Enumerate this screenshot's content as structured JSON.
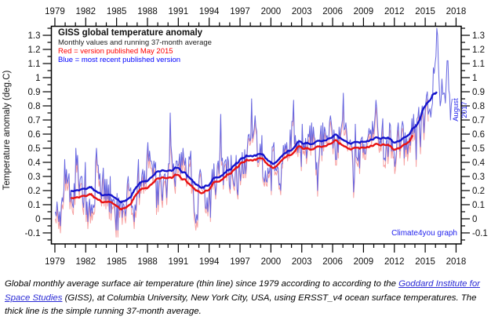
{
  "chart_data": {
    "type": "line",
    "title": "GISS global temperature anomaly",
    "subtitle": "Monthly values and running 37-month average",
    "legend_red": "Red = version published May 2015",
    "legend_blue": "Blue = most recent published version",
    "ylabel": "Temperature anomaly (deg.C)",
    "right_label": "August 2017",
    "watermark": "Climate4you graph",
    "xlim": [
      1978.66,
      2018.5
    ],
    "ylim": [
      -0.178,
      1.364
    ],
    "x_tick_values": [
      1979,
      1982,
      1985,
      1988,
      1991,
      1994,
      1997,
      2000,
      2003,
      2006,
      2009,
      2012,
      2015,
      2018
    ],
    "x_tick_labels": [
      "1979",
      "1982",
      "1985",
      "1988",
      "1991",
      "1994",
      "1997",
      "2000",
      "2003",
      "2006",
      "2009",
      "2012",
      "2015",
      "2018"
    ],
    "x_minor_step": 1,
    "y_tick_values": [
      -0.1,
      0,
      0.1,
      0.2,
      0.3,
      0.4,
      0.5,
      0.6,
      0.7,
      0.8,
      0.9,
      1,
      1.1,
      1.2,
      1.3
    ],
    "y_tick_labels": [
      "-0.1",
      "0",
      "0.1",
      "0.2",
      "0.3",
      "0.4",
      "0.5",
      "0.6",
      "0.7",
      "0.8",
      "0.9",
      "1",
      "1.1",
      "1.2",
      "1.3"
    ],
    "y_minor_step": 0.05,
    "grid": false,
    "running_mean_window": 37,
    "colors": {
      "legend_red_text": "#ff0000",
      "legend_blue_text": "#0000ff",
      "annotation_blue": "#2222ee",
      "link_blue": "#2b2bd5",
      "axis": "#000000"
    },
    "series": [
      {
        "name": "version published May 2015 (monthly, thin) with 37-month running mean (thick)",
        "color_thin": "#f7a0a0",
        "color_thick": "#e81212",
        "start_year": 1979,
        "start_month": 1,
        "values": [
          0.0,
          -0.03,
          0.07,
          0.0,
          -0.07,
          0.0,
          -0.1,
          0.05,
          0.1,
          0.07,
          0.15,
          0.37,
          0.2,
          0.3,
          0.2,
          0.23,
          0.27,
          0.07,
          0.15,
          0.1,
          0.05,
          0.03,
          0.2,
          0.1,
          0.45,
          0.33,
          0.4,
          0.23,
          0.15,
          0.23,
          0.25,
          0.25,
          0.07,
          0.03,
          0.17,
          0.35,
          -0.02,
          0.07,
          -0.07,
          0.03,
          0.09,
          -0.03,
          0.05,
          -0.01,
          0.05,
          0.03,
          0.05,
          0.35,
          0.45,
          0.33,
          0.33,
          0.23,
          0.27,
          0.13,
          0.09,
          0.23,
          0.31,
          0.09,
          0.23,
          0.07,
          0.23,
          0.09,
          0.19,
          0.0,
          0.25,
          -0.01,
          0.09,
          0.07,
          0.09,
          0.08,
          -0.03,
          -0.13,
          0.13,
          -0.13,
          0.1,
          0.01,
          0.07,
          0.08,
          -0.04,
          0.06,
          0.05,
          0.01,
          -0.03,
          0.06,
          0.2,
          0.25,
          0.15,
          0.15,
          0.17,
          0.03,
          0.04,
          0.01,
          -0.07,
          0.05,
          0.01,
          0.09,
          0.25,
          0.37,
          0.1,
          0.21,
          0.18,
          0.26,
          0.3,
          0.18,
          0.29,
          0.2,
          0.21,
          0.4,
          0.49,
          0.36,
          0.43,
          0.36,
          0.36,
          0.33,
          0.25,
          0.36,
          0.31,
          0.35,
          0.03,
          0.22,
          0.05,
          0.21,
          0.28,
          0.26,
          0.13,
          0.08,
          0.22,
          0.26,
          0.27,
          0.21,
          0.1,
          0.25,
          0.34,
          0.34,
          0.7,
          0.47,
          0.4,
          0.29,
          0.34,
          0.23,
          0.18,
          0.36,
          0.36,
          0.32,
          0.34,
          0.41,
          0.27,
          0.42,
          0.33,
          0.45,
          0.37,
          0.33,
          0.38,
          0.23,
          0.25,
          0.25,
          0.39,
          0.37,
          0.43,
          0.18,
          0.23,
          0.16,
          0.0,
          -0.03,
          -0.08,
          -0.02,
          -0.06,
          0.16,
          0.28,
          0.32,
          0.29,
          0.2,
          0.2,
          0.18,
          0.2,
          0.05,
          0.04,
          0.12,
          0.02,
          0.11,
          0.21,
          -0.02,
          0.21,
          0.32,
          0.21,
          0.36,
          0.22,
          0.14,
          0.22,
          0.35,
          0.38,
          0.29,
          0.44,
          0.71,
          0.38,
          0.4,
          0.21,
          0.36,
          0.38,
          0.39,
          0.27,
          0.41,
          0.38,
          0.21,
          0.18,
          0.42,
          0.3,
          0.27,
          0.22,
          0.2,
          0.3,
          0.42,
          0.18,
          0.14,
          0.34,
          0.34,
          0.24,
          0.31,
          0.44,
          0.29,
          0.29,
          0.46,
          0.29,
          0.35,
          0.47,
          0.56,
          0.57,
          0.52,
          0.54,
          0.82,
          0.54,
          0.57,
          0.61,
          0.7,
          0.62,
          0.59,
          0.37,
          0.37,
          0.4,
          0.5,
          0.41,
          0.56,
          0.27,
          0.25,
          0.23,
          0.31,
          0.24,
          0.23,
          0.33,
          0.29,
          0.31,
          0.37,
          0.17,
          0.48,
          0.48,
          0.51,
          0.31,
          0.33,
          0.31,
          0.34,
          0.33,
          0.21,
          0.22,
          0.17,
          0.36,
          0.36,
          0.49,
          0.43,
          0.5,
          0.46,
          0.51,
          0.41,
          0.46,
          0.43,
          0.6,
          0.47,
          0.66,
          0.66,
          0.81,
          0.5,
          0.56,
          0.46,
          0.52,
          0.44,
          0.53,
          0.47,
          0.47,
          0.34,
          0.63,
          0.46,
          0.48,
          0.45,
          0.53,
          0.39,
          0.45,
          0.56,
          0.54,
          0.62,
          0.45,
          0.64,
          0.49,
          0.61,
          0.54,
          0.52,
          0.31,
          0.36,
          0.16,
          0.35,
          0.41,
          0.55,
          0.62,
          0.41,
          0.64,
          0.48,
          0.61,
          0.58,
          0.53,
          0.55,
          0.52,
          0.53,
          0.65,
          0.69,
          0.64,
          0.58,
          0.46,
          0.59,
          0.52,
          0.38,
          0.38,
          0.55,
          0.43,
          0.61,
          0.53,
          0.59,
          0.62,
          0.66,
          0.85,
          0.59,
          0.6,
          0.64,
          0.57,
          0.48,
          0.5,
          0.5,
          0.52,
          0.49,
          0.47,
          0.38,
          0.15,
          0.26,
          0.63,
          0.4,
          0.39,
          0.37,
          0.47,
          0.32,
          0.51,
          0.53,
          0.54,
          0.43,
          0.49,
          0.42,
          0.42,
          0.5,
          0.52,
          0.55,
          0.6,
          0.56,
          0.59,
          0.52,
          0.65,
          0.56,
          0.6,
          0.68,
          0.79,
          0.73,
          0.61,
          0.52,
          0.47,
          0.51,
          0.48,
          0.58,
          0.66,
          0.37,
          0.38,
          0.36,
          0.49,
          0.52,
          0.39,
          0.46,
          0.63,
          0.61,
          0.43,
          0.51,
          0.43,
          0.44,
          0.32,
          0.36,
          0.44,
          0.57,
          0.63,
          0.52,
          0.43,
          0.49,
          0.59,
          0.64,
          0.61,
          0.38,
          0.56,
          0.44,
          0.52,
          0.41,
          0.48,
          0.53,
          0.47,
          0.55,
          0.66,
          0.55,
          0.69,
          0.56,
          0.62,
          0.37,
          0.66,
          0.67,
          0.74,
          0.57,
          0.46,
          0.69,
          0.75,
          0.7,
          0.56,
          0.68,
          0.76,
          0.82,
          0.85,
          0.69
        ]
      },
      {
        "name": "most recent published version (monthly, thin) with 37-month running mean (thick)",
        "color_thin": "#6565e0",
        "color_thick": "#1414cc",
        "start_year": 1979,
        "start_month": 1,
        "values": [
          0.05,
          0.02,
          0.12,
          0.05,
          -0.02,
          0.05,
          -0.05,
          0.1,
          0.15,
          0.12,
          0.2,
          0.42,
          0.25,
          0.35,
          0.25,
          0.28,
          0.32,
          0.12,
          0.2,
          0.15,
          0.1,
          0.08,
          0.25,
          0.15,
          0.5,
          0.38,
          0.45,
          0.28,
          0.2,
          0.28,
          0.3,
          0.3,
          0.12,
          0.08,
          0.22,
          0.4,
          0.03,
          0.12,
          -0.02,
          0.08,
          0.14,
          0.02,
          0.1,
          0.04,
          0.1,
          0.08,
          0.1,
          0.4,
          0.5,
          0.38,
          0.38,
          0.28,
          0.32,
          0.18,
          0.14,
          0.28,
          0.36,
          0.14,
          0.28,
          0.12,
          0.28,
          0.14,
          0.24,
          0.05,
          0.3,
          0.04,
          0.14,
          0.12,
          0.14,
          0.13,
          0.02,
          -0.08,
          0.18,
          -0.08,
          0.15,
          0.06,
          0.12,
          0.13,
          0.01,
          0.11,
          0.1,
          0.06,
          0.02,
          0.11,
          0.25,
          0.3,
          0.2,
          0.2,
          0.22,
          0.08,
          0.09,
          0.06,
          -0.02,
          0.1,
          0.06,
          0.14,
          0.3,
          0.42,
          0.15,
          0.26,
          0.23,
          0.31,
          0.35,
          0.23,
          0.34,
          0.25,
          0.26,
          0.45,
          0.54,
          0.41,
          0.48,
          0.41,
          0.41,
          0.38,
          0.3,
          0.41,
          0.36,
          0.4,
          0.08,
          0.27,
          0.1,
          0.26,
          0.33,
          0.31,
          0.18,
          0.13,
          0.27,
          0.31,
          0.32,
          0.26,
          0.15,
          0.3,
          0.39,
          0.39,
          0.75,
          0.52,
          0.45,
          0.34,
          0.39,
          0.28,
          0.23,
          0.41,
          0.41,
          0.37,
          0.39,
          0.46,
          0.32,
          0.47,
          0.38,
          0.5,
          0.42,
          0.38,
          0.43,
          0.28,
          0.3,
          0.3,
          0.44,
          0.42,
          0.48,
          0.23,
          0.28,
          0.21,
          0.05,
          0.02,
          -0.03,
          0.03,
          -0.01,
          0.21,
          0.31,
          0.35,
          0.32,
          0.23,
          0.23,
          0.21,
          0.23,
          0.08,
          0.07,
          0.15,
          0.05,
          0.14,
          0.24,
          0.01,
          0.24,
          0.35,
          0.24,
          0.39,
          0.25,
          0.17,
          0.25,
          0.38,
          0.41,
          0.32,
          0.47,
          0.74,
          0.41,
          0.43,
          0.24,
          0.39,
          0.41,
          0.42,
          0.3,
          0.44,
          0.41,
          0.24,
          0.21,
          0.45,
          0.33,
          0.3,
          0.25,
          0.23,
          0.33,
          0.45,
          0.21,
          0.17,
          0.37,
          0.37,
          0.27,
          0.34,
          0.47,
          0.32,
          0.32,
          0.49,
          0.32,
          0.38,
          0.5,
          0.59,
          0.6,
          0.55,
          0.57,
          0.85,
          0.57,
          0.6,
          0.64,
          0.73,
          0.65,
          0.62,
          0.4,
          0.4,
          0.43,
          0.53,
          0.44,
          0.59,
          0.3,
          0.28,
          0.26,
          0.34,
          0.27,
          0.26,
          0.36,
          0.32,
          0.34,
          0.4,
          0.2,
          0.51,
          0.51,
          0.54,
          0.34,
          0.36,
          0.34,
          0.37,
          0.36,
          0.24,
          0.25,
          0.2,
          0.39,
          0.39,
          0.52,
          0.46,
          0.53,
          0.49,
          0.54,
          0.44,
          0.49,
          0.46,
          0.63,
          0.5,
          0.69,
          0.69,
          0.84,
          0.53,
          0.59,
          0.49,
          0.55,
          0.47,
          0.56,
          0.5,
          0.5,
          0.37,
          0.67,
          0.5,
          0.52,
          0.49,
          0.57,
          0.43,
          0.49,
          0.6,
          0.58,
          0.66,
          0.49,
          0.68,
          0.53,
          0.65,
          0.58,
          0.56,
          0.35,
          0.4,
          0.2,
          0.39,
          0.45,
          0.59,
          0.66,
          0.45,
          0.68,
          0.52,
          0.65,
          0.62,
          0.57,
          0.59,
          0.56,
          0.57,
          0.69,
          0.73,
          0.68,
          0.62,
          0.5,
          0.63,
          0.56,
          0.42,
          0.42,
          0.59,
          0.47,
          0.65,
          0.57,
          0.63,
          0.66,
          0.7,
          0.89,
          0.63,
          0.64,
          0.68,
          0.61,
          0.52,
          0.54,
          0.54,
          0.56,
          0.53,
          0.51,
          0.42,
          0.19,
          0.3,
          0.67,
          0.44,
          0.43,
          0.41,
          0.51,
          0.36,
          0.55,
          0.57,
          0.58,
          0.47,
          0.53,
          0.46,
          0.46,
          0.54,
          0.56,
          0.59,
          0.64,
          0.6,
          0.63,
          0.56,
          0.69,
          0.6,
          0.65,
          0.73,
          0.84,
          0.78,
          0.66,
          0.57,
          0.52,
          0.56,
          0.53,
          0.63,
          0.71,
          0.42,
          0.43,
          0.41,
          0.54,
          0.57,
          0.44,
          0.51,
          0.68,
          0.66,
          0.48,
          0.56,
          0.48,
          0.49,
          0.37,
          0.41,
          0.49,
          0.62,
          0.68,
          0.57,
          0.48,
          0.54,
          0.64,
          0.69,
          0.66,
          0.43,
          0.61,
          0.49,
          0.57,
          0.46,
          0.53,
          0.58,
          0.52,
          0.6,
          0.71,
          0.6,
          0.74,
          0.61,
          0.67,
          0.42,
          0.71,
          0.72,
          0.79,
          0.62,
          0.51,
          0.74,
          0.8,
          0.75,
          0.61,
          0.73,
          0.81,
          0.87,
          0.9,
          0.74,
          0.76,
          0.78,
          0.72,
          0.78,
          0.82,
          1.07,
          1.03,
          1.1,
          1.15,
          1.35,
          1.3,
          1.08,
          0.93,
          0.8,
          0.84,
          0.99,
          0.88,
          0.89,
          0.89,
          0.82,
          0.97,
          1.12,
          1.12,
          0.91,
          0.88,
          0.7,
          0.81,
          0.85
        ]
      }
    ]
  },
  "caption": {
    "part1": "Global monthly average surface air temperature (thin line) since 1979 according to according to the ",
    "link_text": "Goddard Institute for Space Studies",
    "part2": " (GISS), at Columbia University, New York City, USA, using ERSST_v4 ocean surface temperatures. The thick line is the simple running 37-month average."
  }
}
